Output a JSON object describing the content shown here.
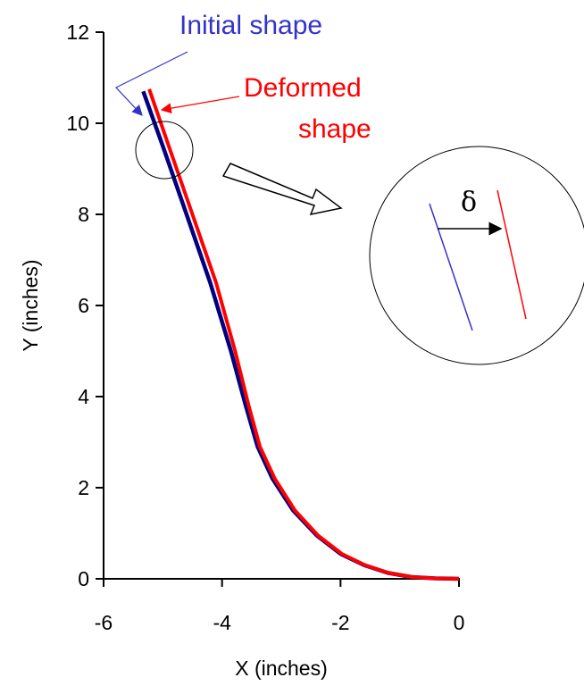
{
  "chart_data": {
    "type": "line",
    "xlabel": "X (inches)",
    "ylabel": "Y (inches)",
    "xlim": [
      -6,
      0
    ],
    "ylim": [
      0,
      12
    ],
    "x_ticks": [
      "-6",
      "-4",
      "-2",
      "0"
    ],
    "y_ticks": [
      "0",
      "2",
      "4",
      "6",
      "8",
      "10",
      "12"
    ],
    "grid": false,
    "series": [
      {
        "name": "Initial shape",
        "color": "#000080",
        "x": [
          -5.33,
          -5.0,
          -4.6,
          -4.2,
          -3.85,
          -3.6,
          -3.4,
          -3.15,
          -2.8,
          -2.4,
          -2.0,
          -1.6,
          -1.2,
          -0.8,
          -0.4,
          0.0
        ],
        "y": [
          10.7,
          9.5,
          8.0,
          6.5,
          5.0,
          3.8,
          2.9,
          2.2,
          1.5,
          0.95,
          0.55,
          0.3,
          0.13,
          0.04,
          0.01,
          0.0
        ]
      },
      {
        "name": "Deformed shape",
        "color": "#ff0000",
        "x": [
          -5.23,
          -4.9,
          -4.5,
          -4.1,
          -3.78,
          -3.55,
          -3.36,
          -3.11,
          -2.77,
          -2.38,
          -1.98,
          -1.59,
          -1.19,
          -0.79,
          -0.4,
          0.0
        ],
        "y": [
          10.75,
          9.5,
          8.0,
          6.5,
          5.0,
          3.8,
          2.9,
          2.2,
          1.5,
          0.95,
          0.55,
          0.3,
          0.13,
          0.04,
          0.01,
          0.0
        ]
      }
    ],
    "annotations": {
      "initial_label": "Initial shape",
      "initial_color": "#3333cc",
      "deformed_label_line1": "Deformed",
      "deformed_label_line2": "shape",
      "deformed_color": "#ff0000",
      "zoom_symbol": "δ"
    }
  }
}
